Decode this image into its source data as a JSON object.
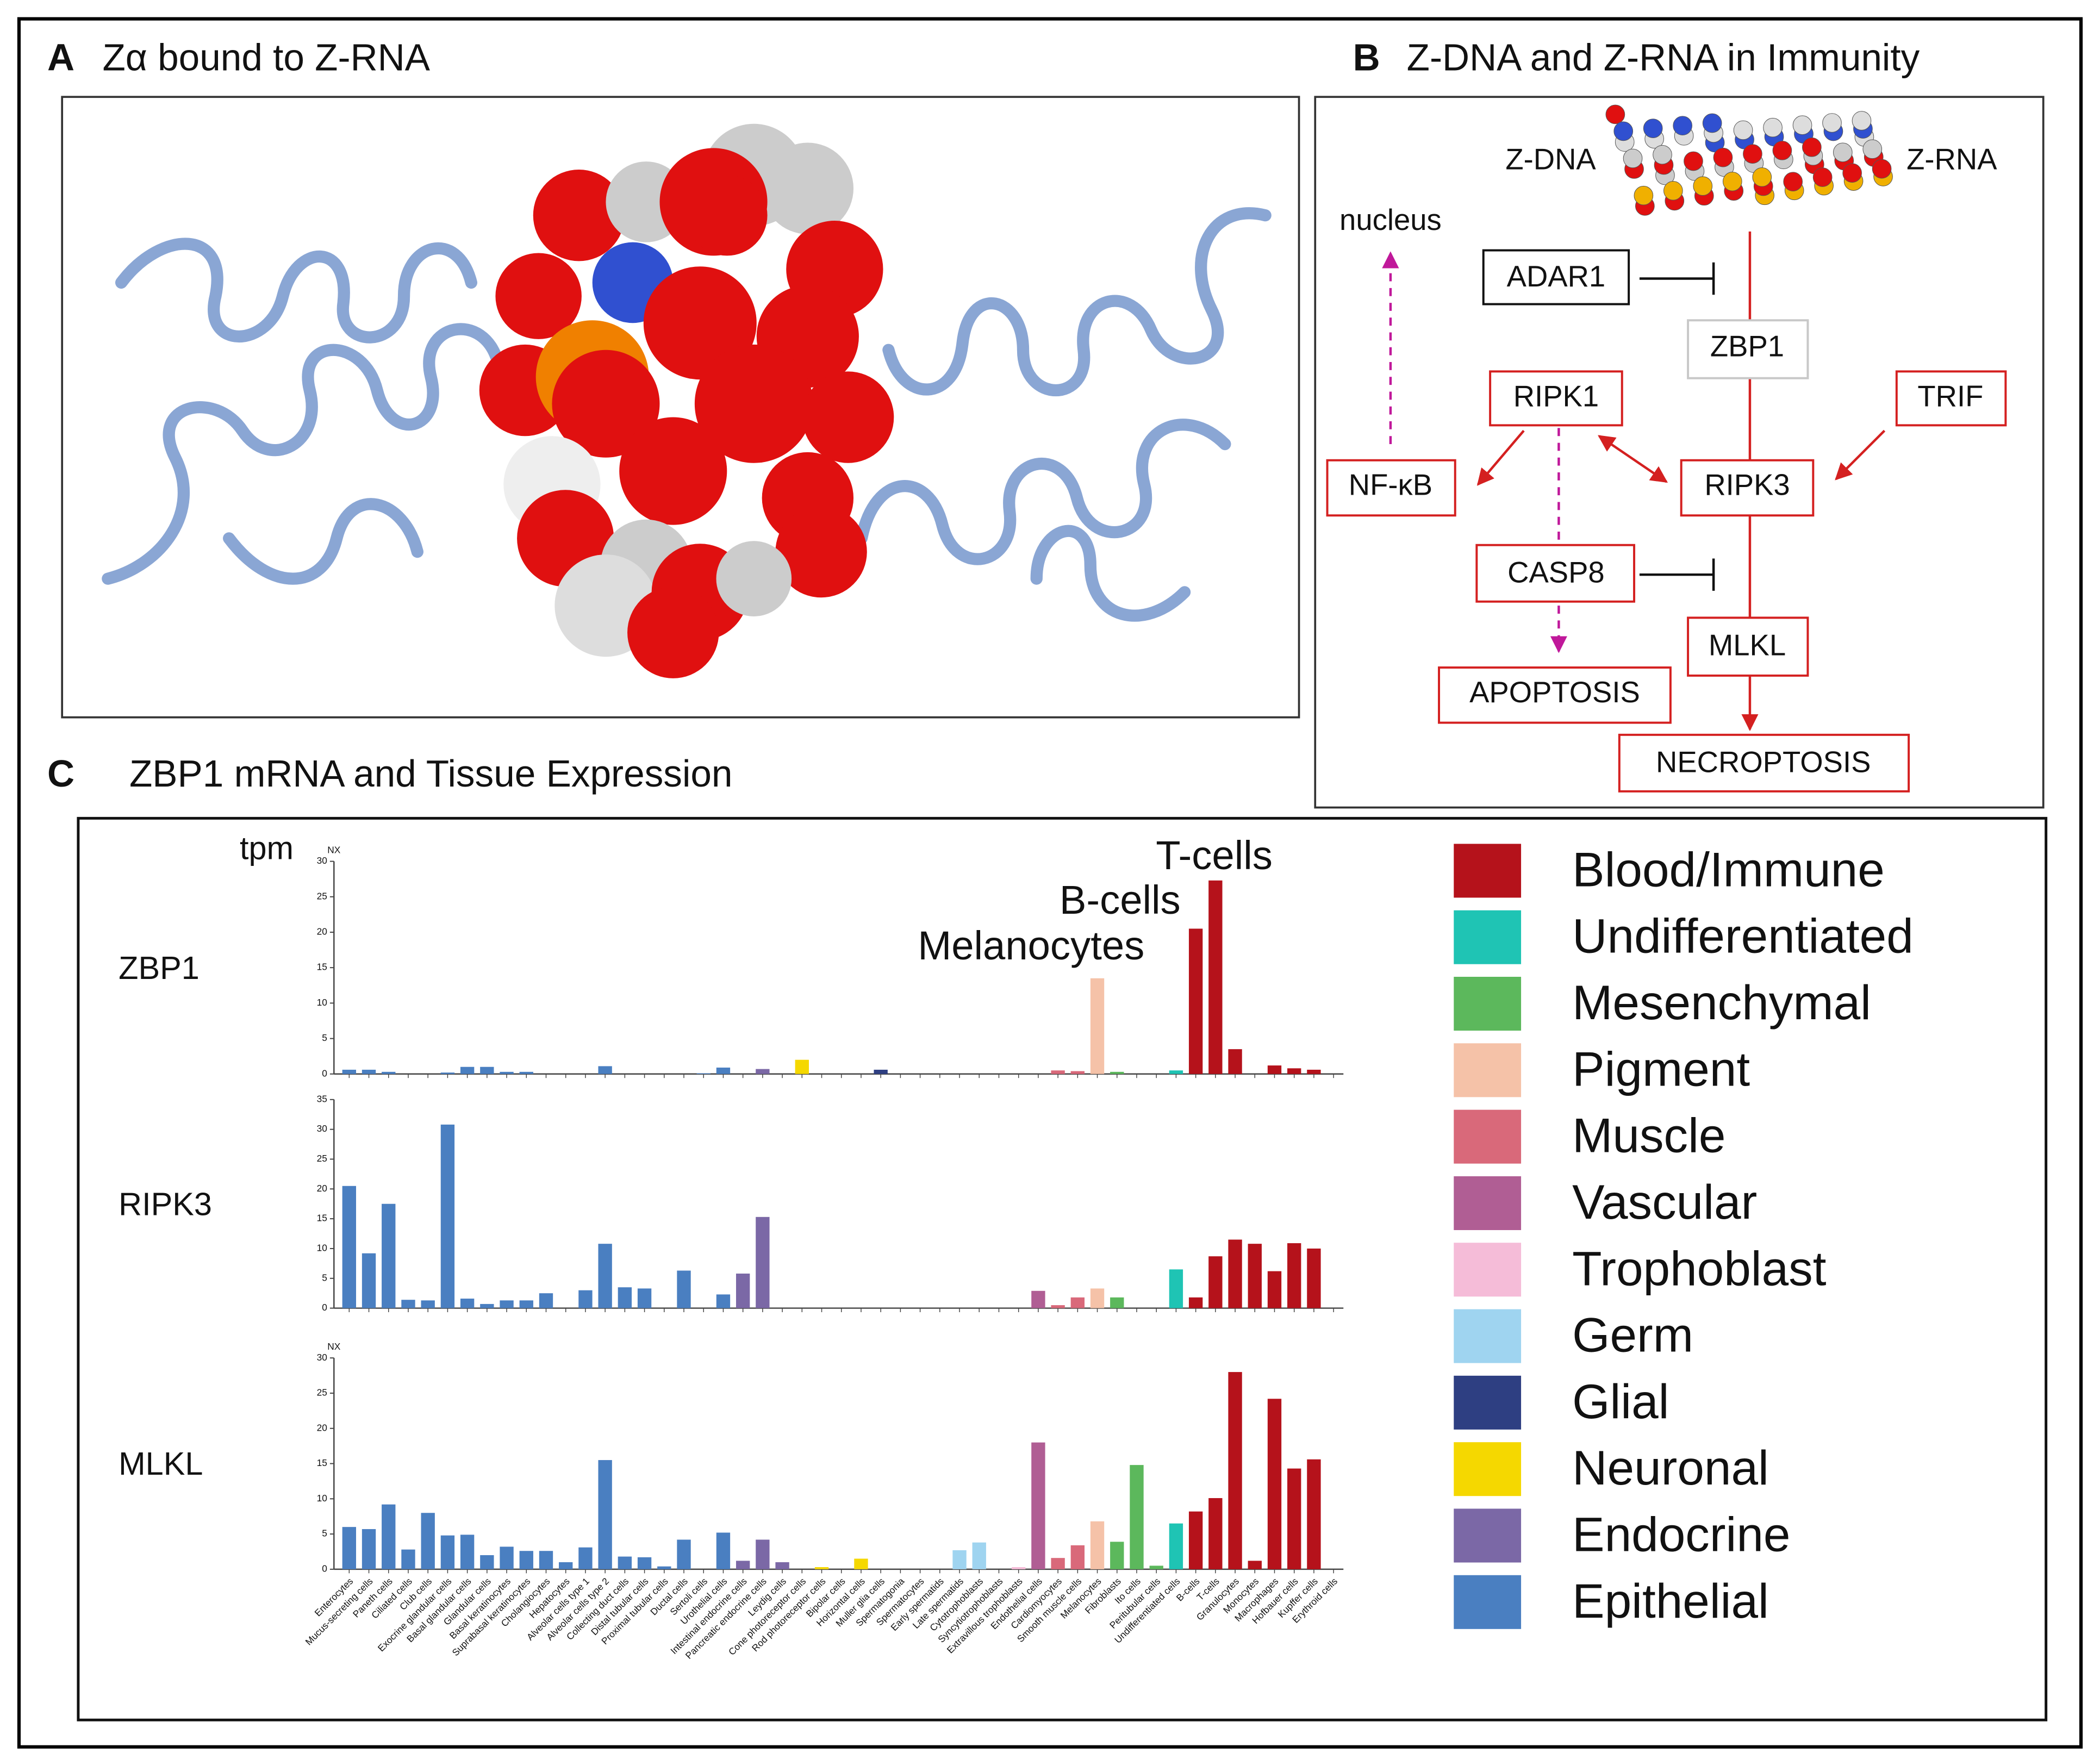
{
  "panel_a": {
    "label": "A",
    "title": "Zα bound to Z-RNA"
  },
  "panel_b": {
    "label": "B",
    "title": "Z-DNA and Z-RNA in Immunity",
    "nodes": {
      "zdna": "Z-DNA",
      "zrna": "Z-RNA",
      "nucleus": "nucleus",
      "adar1": "ADAR1",
      "zbp1": "ZBP1",
      "ripk1": "RIPK1",
      "trif": "TRIF",
      "nfkb": "NF-κB",
      "ripk3": "RIPK3",
      "casp8": "CASP8",
      "mlkl": "MLKL",
      "apoptosis": "APOPTOSIS",
      "necroptosis": "NECROPTOSIS"
    }
  },
  "panel_c": {
    "label": "C",
    "title": "ZBP1 mRNA and Tissue Expression"
  },
  "chart_data": {
    "type": "bar",
    "y_label": "tpm",
    "categories": [
      "Enterocytes",
      "Mucus-secreting cells",
      "Paneth cells",
      "Ciliated cells",
      "Club cells",
      "Exocrine glandular cells",
      "Basal glandular cells",
      "Glandular cells",
      "Basal keratinocytes",
      "Suprabasal keratinocytes",
      "Cholangiocytes",
      "Hepatocytes",
      "Alveolar cells type 1",
      "Alveolar cells type 2",
      "Collecting duct cells",
      "Distal tubular cells",
      "Proximal tubular cells",
      "Ductal cells",
      "Sertoli cells",
      "Urothelial cells",
      "Intestinal endocrine cells",
      "Pancreatic endocrine cells",
      "Leydig cells",
      "Cone photoreceptor cells",
      "Rod photoreceptor cells",
      "Bipolar cells",
      "Horizontal cells",
      "Muller glia cells",
      "Spermatogonia",
      "Spermatocytes",
      "Early spermatids",
      "Late spermatids",
      "Cytotrophoblasts",
      "Syncytiotrophoblasts",
      "Extravillous trophoblasts",
      "Endothelial cells",
      "Cardiomyocytes",
      "Smooth muscle cells",
      "Melanocytes",
      "Fibroblasts",
      "Ito cells",
      "Peritubular cells",
      "Undifferentiated cells",
      "B-cells",
      "T-cells",
      "Granulocytes",
      "Monocytes",
      "Macrophages",
      "Hofbauer cells",
      "Kupffer cells",
      "Erythroid cells"
    ],
    "colors": [
      "#4a7fc1",
      "#4a7fc1",
      "#4a7fc1",
      "#4a7fc1",
      "#4a7fc1",
      "#4a7fc1",
      "#4a7fc1",
      "#4a7fc1",
      "#4a7fc1",
      "#4a7fc1",
      "#4a7fc1",
      "#4a7fc1",
      "#4a7fc1",
      "#4a7fc1",
      "#4a7fc1",
      "#4a7fc1",
      "#4a7fc1",
      "#4a7fc1",
      "#4a7fc1",
      "#4a7fc1",
      "#7b68a6",
      "#7b68a6",
      "#7b68a6",
      "#f5d800",
      "#f5d800",
      "#f5d800",
      "#f5d800",
      "#2e3f82",
      "#9fd4f0",
      "#9fd4f0",
      "#9fd4f0",
      "#9fd4f0",
      "#9fd4f0",
      "#f5bcd8",
      "#f5bcd8",
      "#b05e94",
      "#d9697a",
      "#d9697a",
      "#f5c2a8",
      "#5cb85c",
      "#5cb85c",
      "#5cb85c",
      "#1fc4b4",
      "#b5121b",
      "#b5121b",
      "#b5121b",
      "#b5121b",
      "#b5121b",
      "#b5121b",
      "#b5121b",
      "#b5121b"
    ],
    "series": [
      {
        "name": "ZBP1",
        "axis_label": "NX",
        "ylim": [
          0,
          30
        ],
        "yticks": [
          0,
          5,
          10,
          15,
          20,
          25,
          30
        ],
        "values": [
          0.6,
          0.6,
          0.3,
          0,
          0,
          0.2,
          1,
          1,
          0.3,
          0.3,
          0,
          0,
          0,
          1.1,
          0,
          0,
          0,
          0,
          0.1,
          0.9,
          0,
          0.7,
          0,
          2,
          0,
          0,
          0,
          0.6,
          0,
          0,
          0,
          0,
          0,
          0,
          0,
          0,
          0.5,
          0.4,
          13.5,
          0.3,
          0,
          0,
          0.5,
          20.5,
          27.3,
          3.5,
          0,
          1.2,
          0.8,
          0.6,
          0
        ]
      },
      {
        "name": "RIPK3",
        "ylim": [
          0,
          35
        ],
        "yticks": [
          0,
          5,
          10,
          15,
          20,
          25,
          30,
          35
        ],
        "values": [
          20.5,
          9.2,
          17.5,
          1.4,
          1.3,
          30.8,
          1.6,
          0.7,
          1.3,
          1.3,
          2.5,
          0,
          3,
          10.8,
          3.5,
          3.3,
          0,
          6.3,
          0,
          2.3,
          5.8,
          15.3,
          0,
          0,
          0,
          0,
          0,
          0,
          0,
          0,
          0,
          0,
          0,
          0,
          0,
          2.9,
          0.5,
          1.8,
          3.3,
          1.8,
          0,
          0,
          6.5,
          1.8,
          8.7,
          11.5,
          10.8,
          6.2,
          10.9,
          10,
          0
        ]
      },
      {
        "name": "MLKL",
        "axis_label": "NX",
        "ylim": [
          0,
          30
        ],
        "yticks": [
          0,
          5,
          10,
          15,
          20,
          25,
          30
        ],
        "values": [
          6,
          5.7,
          9.2,
          2.8,
          8,
          4.8,
          4.9,
          2,
          3.2,
          2.6,
          2.6,
          1,
          3.1,
          15.5,
          1.8,
          1.7,
          0.4,
          4.2,
          0,
          5.2,
          1.2,
          4.2,
          1,
          0,
          0.3,
          0,
          1.5,
          0,
          0,
          0,
          0,
          2.7,
          3.8,
          0,
          0.3,
          18,
          1.6,
          3.4,
          6.8,
          3.9,
          14.8,
          0.5,
          6.5,
          8.2,
          10.1,
          28,
          1.2,
          24.2,
          14.3,
          15.6,
          0
        ]
      }
    ],
    "annotations": [
      "T-cells",
      "B-cells",
      "Melanocytes"
    ],
    "legend": [
      {
        "name": "Blood/Immune",
        "color": "#b5121b"
      },
      {
        "name": "Undifferentiated",
        "color": "#1fc4b4"
      },
      {
        "name": "Mesenchymal",
        "color": "#5cb85c"
      },
      {
        "name": "Pigment",
        "color": "#f5c2a8"
      },
      {
        "name": "Muscle",
        "color": "#d9697a"
      },
      {
        "name": "Vascular",
        "color": "#b05e94"
      },
      {
        "name": "Trophoblast",
        "color": "#f5bcd8"
      },
      {
        "name": "Germ",
        "color": "#9fd4f0"
      },
      {
        "name": "Glial",
        "color": "#2e3f82"
      },
      {
        "name": "Neuronal",
        "color": "#f5d800"
      },
      {
        "name": "Endocrine",
        "color": "#7b68a6"
      },
      {
        "name": "Epithelial",
        "color": "#4a7fc1"
      }
    ]
  }
}
